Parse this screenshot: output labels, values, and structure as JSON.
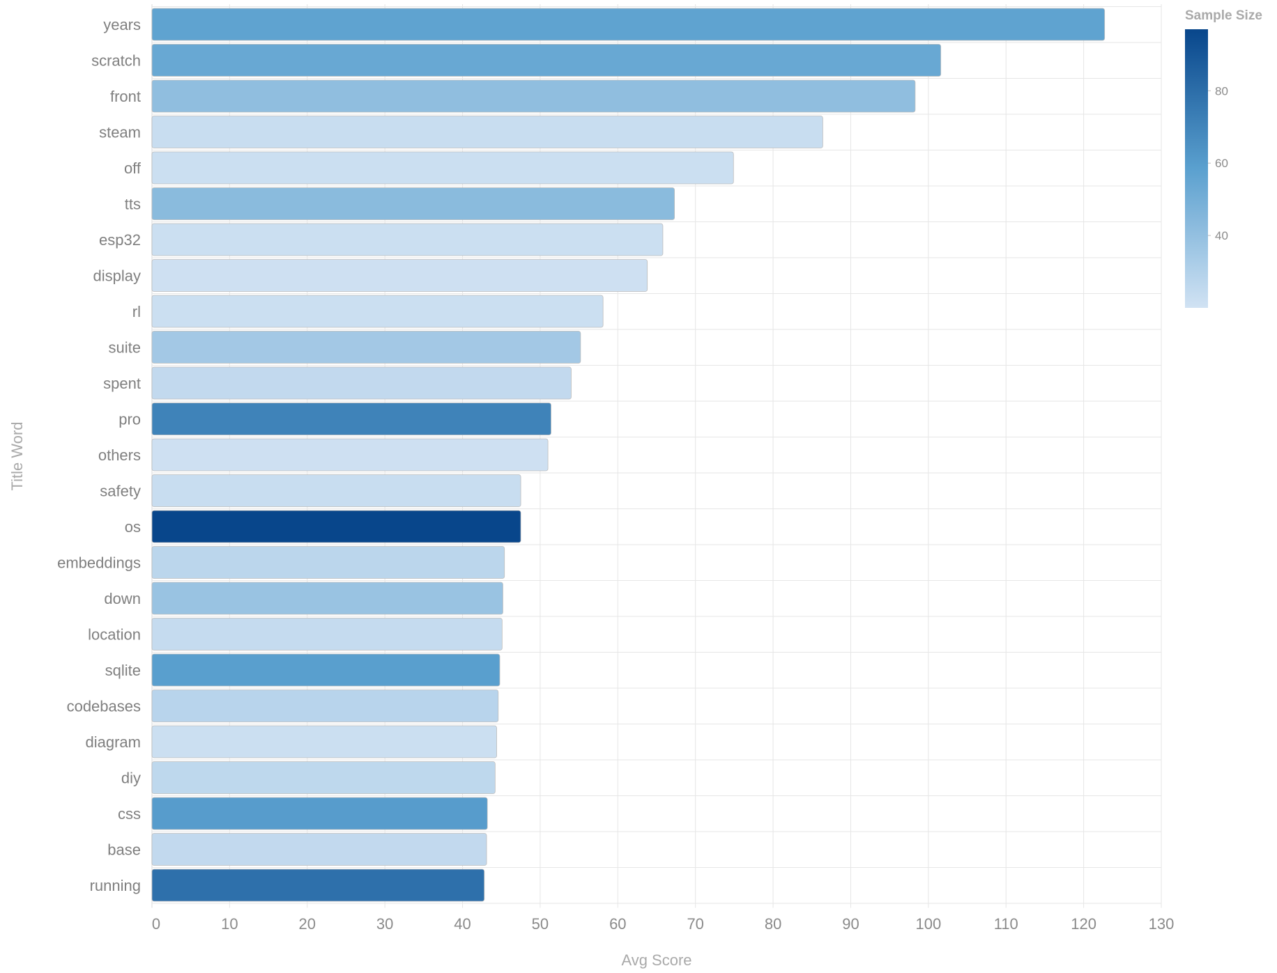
{
  "chart_data": {
    "type": "bar",
    "orientation": "horizontal",
    "xlabel": "Avg Score",
    "ylabel": "Title Word",
    "xlim": [
      0,
      130
    ],
    "xticks": [
      "0",
      "10",
      "20",
      "30",
      "40",
      "50",
      "60",
      "70",
      "80",
      "90",
      "100",
      "110",
      "120",
      "130"
    ],
    "grid": true,
    "categories": [
      "years",
      "scratch",
      "front",
      "steam",
      "off",
      "tts",
      "esp32",
      "display",
      "rl",
      "suite",
      "spent",
      "pro",
      "others",
      "safety",
      "os",
      "embeddings",
      "down",
      "location",
      "sqlite",
      "codebases",
      "diagram",
      "diy",
      "css",
      "base",
      "running"
    ],
    "values": [
      122.7,
      101.6,
      98.3,
      86.4,
      74.9,
      67.3,
      65.8,
      63.8,
      58.1,
      55.2,
      54.0,
      51.4,
      51.0,
      47.5,
      47.5,
      45.4,
      45.2,
      45.1,
      44.8,
      44.6,
      44.4,
      44.2,
      43.2,
      43.1,
      42.8
    ],
    "sample_size": [
      57,
      54,
      41,
      23,
      22,
      43,
      22,
      21,
      22,
      35,
      25,
      71,
      21,
      23,
      97,
      27,
      38,
      24,
      59,
      28,
      22,
      26,
      60,
      25,
      79
    ],
    "legend": {
      "title": "Sample Size",
      "ticks": [
        "40",
        "60",
        "80"
      ],
      "tick_values": [
        40,
        60,
        80
      ],
      "min": 20,
      "max": 97,
      "placement": "top-right",
      "colormap": "Blues"
    },
    "colors": {
      "low": "#d1e2f3",
      "high": "#08468b",
      "grid": "#e6e6e6",
      "bar_stroke": "#bcbcbc"
    }
  }
}
